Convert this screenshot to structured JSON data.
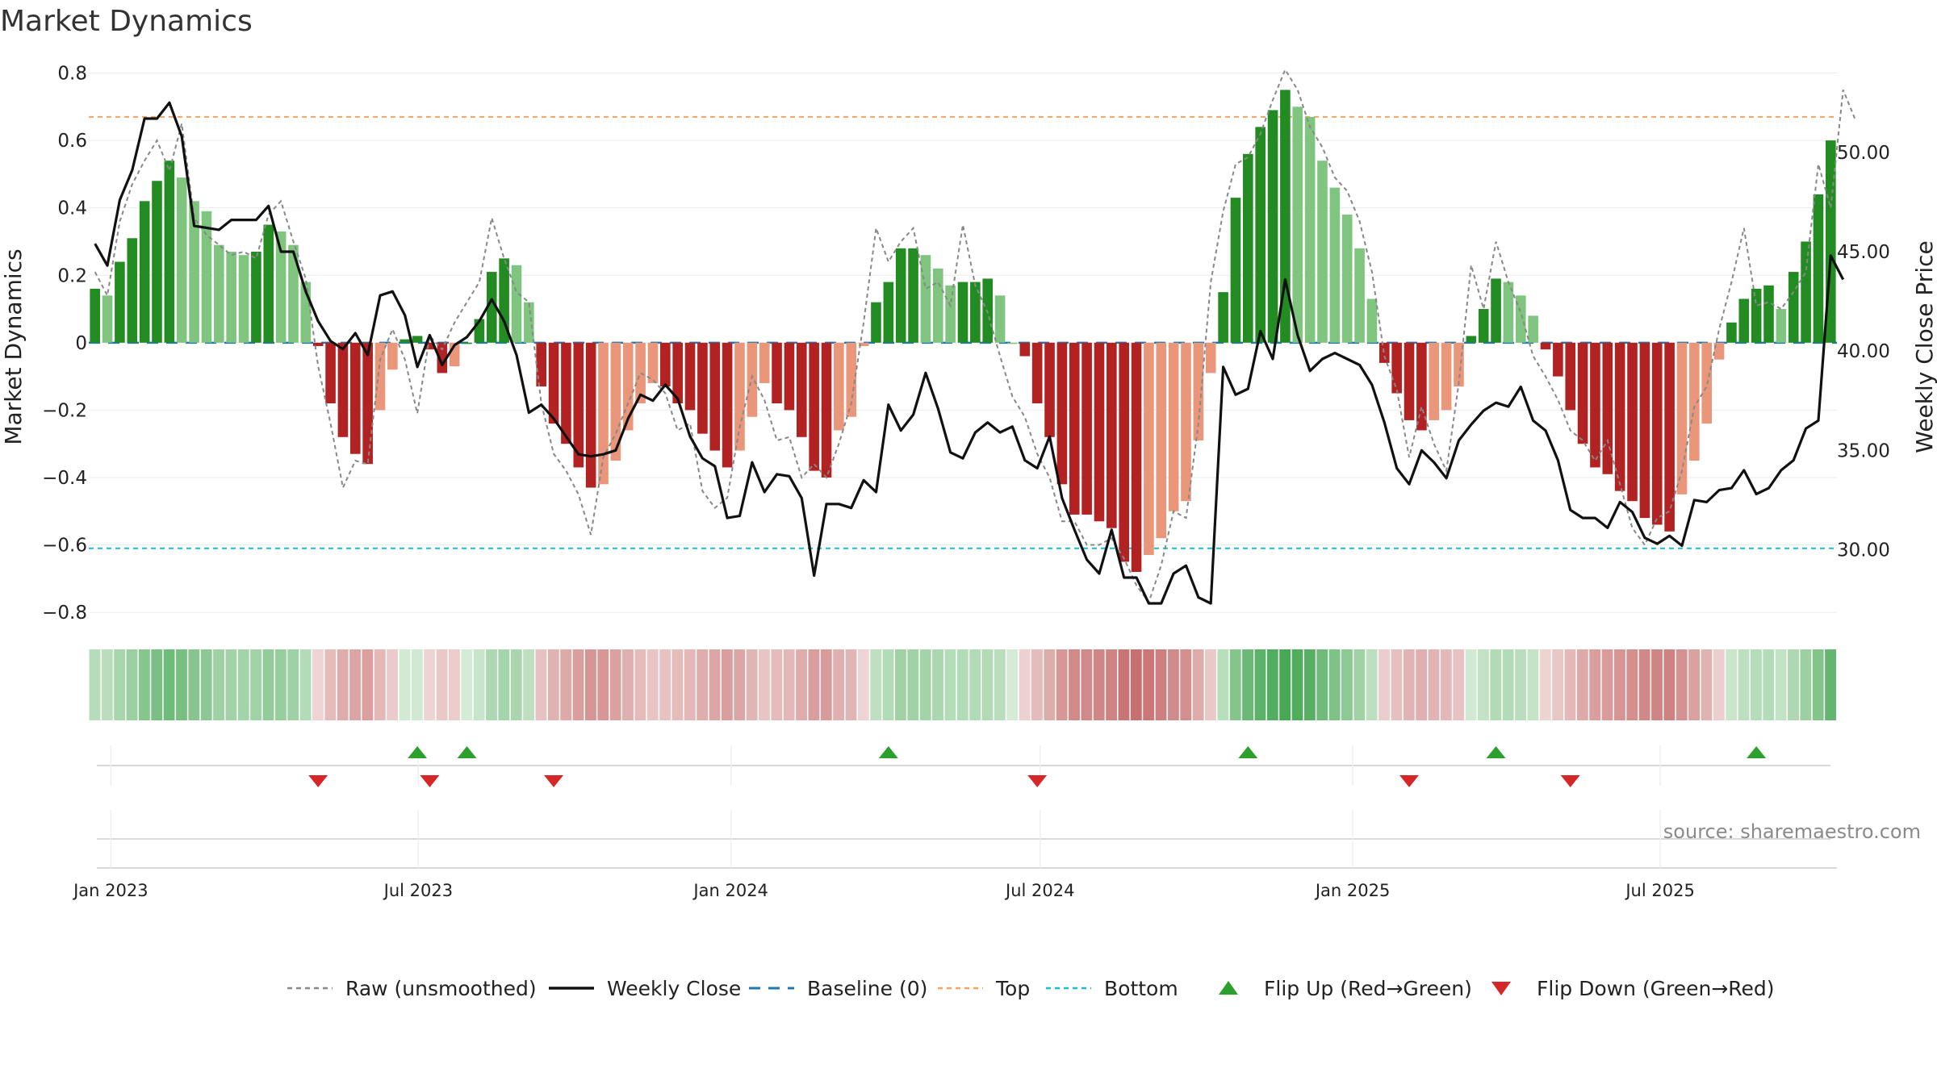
{
  "chart_data": {
    "type": "bar",
    "title": "Market Dynamics",
    "ylabel": "Market Dynamics",
    "y2label": "Weekly Close Price",
    "ylim": [
      -0.85,
      0.83
    ],
    "y2lim": [
      26.0,
      54.5
    ],
    "yticks": [
      0.8,
      0.6,
      0.4,
      0.2,
      0,
      -0.2,
      -0.4,
      -0.6,
      -0.8
    ],
    "ytick_labels": [
      "0.8",
      "0.6",
      "0.4",
      "0.2",
      "0",
      "−0.2",
      "−0.4",
      "−0.6",
      "−0.8"
    ],
    "y2ticks": [
      50,
      45,
      40,
      35,
      30
    ],
    "y2tick_labels": [
      "50.00",
      "45.00",
      "40.00",
      "35.00",
      "30.00"
    ],
    "x_start": "2022-12-19",
    "x_end": "2025-10-13",
    "xticks": [
      "2023-01-01",
      "2023-07-01",
      "2024-01-01",
      "2024-07-01",
      "2025-01-01",
      "2025-07-01"
    ],
    "xtick_labels": [
      "Jan 2023",
      "Jul 2023",
      "Jan 2024",
      "Jul 2024",
      "Jan 2025",
      "Jul 2025"
    ],
    "top_threshold": 0.67,
    "bottom_threshold": -0.61,
    "baseline": 0,
    "bar_colors": {
      "up_rising": "#228b22",
      "up_falling": "#7fc47f",
      "down_falling": "#b22222",
      "down_rising": "#e9967a"
    },
    "line_colors": {
      "raw": "#888888",
      "close": "#111111",
      "baseline": "#1f77b4",
      "top": "#f4a460",
      "bottom": "#17becf"
    },
    "dynamics": [
      0.16,
      0.14,
      0.24,
      0.31,
      0.42,
      0.48,
      0.54,
      0.49,
      0.42,
      0.39,
      0.29,
      0.27,
      0.26,
      0.27,
      0.35,
      0.33,
      0.29,
      0.18,
      -0.01,
      -0.18,
      -0.28,
      -0.33,
      -0.36,
      -0.2,
      -0.08,
      0.01,
      0.02,
      -0.02,
      -0.09,
      -0.07,
      0,
      0.07,
      0.21,
      0.25,
      0.23,
      0.12,
      -0.13,
      -0.24,
      -0.3,
      -0.37,
      -0.43,
      -0.42,
      -0.35,
      -0.26,
      -0.18,
      -0.12,
      -0.13,
      -0.18,
      -0.2,
      -0.27,
      -0.32,
      -0.37,
      -0.32,
      -0.22,
      -0.12,
      -0.18,
      -0.2,
      -0.28,
      -0.38,
      -0.4,
      -0.26,
      -0.22,
      -0.01,
      0.12,
      0.18,
      0.28,
      0.28,
      0.26,
      0.22,
      0.17,
      0.18,
      0.18,
      0.19,
      0.14,
      0,
      -0.04,
      -0.18,
      -0.28,
      -0.42,
      -0.51,
      -0.51,
      -0.53,
      -0.55,
      -0.65,
      -0.68,
      -0.63,
      -0.58,
      -0.5,
      -0.47,
      -0.29,
      -0.09,
      0.15,
      0.43,
      0.56,
      0.64,
      0.69,
      0.75,
      0.7,
      0.67,
      0.54,
      0.46,
      0.38,
      0.28,
      0.13,
      -0.06,
      -0.15,
      -0.23,
      -0.26,
      -0.23,
      -0.2,
      -0.13,
      0.02,
      0.1,
      0.19,
      0.18,
      0.14,
      0.08,
      -0.02,
      -0.1,
      -0.2,
      -0.3,
      -0.37,
      -0.39,
      -0.44,
      -0.47,
      -0.52,
      -0.54,
      -0.56,
      -0.45,
      -0.35,
      -0.24,
      -0.05,
      0.06,
      0.13,
      0.16,
      0.17,
      0.1,
      0.21,
      0.3,
      0.44,
      0.6
    ],
    "raw": [
      0.21,
      0.14,
      0.36,
      0.47,
      0.54,
      0.6,
      0.51,
      0.65,
      0.37,
      0.32,
      0.29,
      0.26,
      0.27,
      0.25,
      0.38,
      0.42,
      0.3,
      0.19,
      -0.07,
      -0.24,
      -0.43,
      -0.35,
      -0.36,
      -0.05,
      0.04,
      -0.05,
      -0.21,
      0.02,
      -0.02,
      0.06,
      0.12,
      0.18,
      0.37,
      0.25,
      0.15,
      0.12,
      -0.18,
      -0.33,
      -0.38,
      -0.45,
      -0.57,
      -0.34,
      -0.27,
      -0.18,
      -0.09,
      -0.11,
      -0.15,
      -0.26,
      -0.24,
      -0.44,
      -0.49,
      -0.46,
      -0.25,
      -0.1,
      -0.17,
      -0.29,
      -0.28,
      -0.4,
      -0.36,
      -0.4,
      -0.3,
      -0.18,
      0.06,
      0.34,
      0.24,
      0.3,
      0.34,
      0.16,
      0.18,
      0.11,
      0.35,
      0.17,
      0.09,
      -0.04,
      -0.16,
      -0.22,
      -0.33,
      -0.4,
      -0.53,
      -0.53,
      -0.6,
      -0.6,
      -0.58,
      -0.64,
      -0.72,
      -0.77,
      -0.66,
      -0.5,
      -0.52,
      -0.24,
      0.18,
      0.39,
      0.53,
      0.55,
      0.62,
      0.72,
      0.81,
      0.75,
      0.64,
      0.58,
      0.49,
      0.45,
      0.36,
      0.21,
      -0.04,
      -0.14,
      -0.34,
      -0.19,
      -0.3,
      -0.38,
      -0.12,
      0.23,
      0.1,
      0.3,
      0.18,
      0.09,
      -0.04,
      -0.1,
      -0.17,
      -0.26,
      -0.29,
      -0.35,
      -0.29,
      -0.42,
      -0.55,
      -0.6,
      -0.52,
      -0.5,
      -0.38,
      -0.19,
      -0.13,
      0.04,
      0.18,
      0.34,
      0.11,
      0.12,
      0.1,
      0.15,
      0.21,
      0.53,
      0.4,
      0.75,
      0.66
    ],
    "close": [
      45.4,
      44.3,
      47.6,
      49.1,
      51.7,
      51.7,
      52.5,
      50.8,
      46.3,
      46.2,
      46.1,
      46.6,
      46.6,
      46.6,
      47.3,
      45.0,
      45.0,
      43.0,
      41.5,
      40.5,
      40.1,
      40.9,
      39.8,
      42.8,
      43.0,
      41.8,
      39.2,
      40.8,
      39.3,
      40.3,
      40.7,
      41.5,
      42.6,
      41.5,
      39.8,
      36.9,
      37.3,
      36.6,
      35.7,
      34.8,
      34.7,
      34.8,
      35.0,
      36.6,
      37.8,
      37.5,
      38.3,
      37.6,
      35.7,
      34.6,
      34.2,
      31.6,
      31.7,
      34.4,
      32.9,
      33.8,
      33.7,
      32.6,
      28.7,
      32.3,
      32.3,
      32.1,
      33.5,
      32.9,
      37.3,
      36.0,
      36.8,
      38.9,
      37.1,
      34.9,
      34.6,
      35.9,
      36.4,
      35.9,
      36.2,
      34.5,
      34.1,
      35.7,
      32.6,
      31.0,
      29.5,
      28.8,
      31.0,
      28.6,
      28.6,
      27.3,
      27.3,
      28.8,
      29.2,
      27.6,
      27.3,
      39.2,
      37.8,
      38.1,
      41.0,
      39.6,
      43.6,
      40.8,
      39.0,
      39.6,
      39.9,
      39.6,
      39.3,
      38.3,
      36.4,
      34.1,
      33.3,
      35.0,
      34.4,
      33.6,
      35.5,
      36.3,
      37.0,
      37.4,
      37.2,
      38.2,
      36.5,
      36.0,
      34.5,
      32.0,
      31.6,
      31.6,
      31.1,
      32.4,
      31.9,
      30.6,
      30.3,
      30.7,
      30.2,
      32.5,
      32.4,
      33.0,
      33.1,
      34.0,
      32.8,
      33.1,
      34.0,
      34.5,
      36.1,
      36.5,
      44.8,
      43.6
    ]
  },
  "strip": {
    "colors": {
      "strong_green": "#48a856",
      "pale_green": "#d4ebd5",
      "strong_red": "#c46565",
      "pale_red": "#efd6d6"
    }
  },
  "signals": {
    "flip_up_weeks": [
      26,
      30,
      64,
      93,
      113,
      134
    ],
    "flip_down_weeks": [
      18,
      27,
      37,
      76,
      106,
      119
    ],
    "up_color": "#2ca02c",
    "down_color": "#d62728"
  },
  "source": "source: sharemaestro.com",
  "legend": [
    {
      "label": "Raw (unsmoothed)",
      "kind": "dash-line",
      "color": "#888888"
    },
    {
      "label": "Weekly Close",
      "kind": "solid-line",
      "color": "#111111"
    },
    {
      "label": "Baseline (0)",
      "kind": "dash-line",
      "color": "#1f77b4"
    },
    {
      "label": "Top",
      "kind": "dash-line",
      "color": "#f4a460"
    },
    {
      "label": "Bottom",
      "kind": "dash-line",
      "color": "#17becf"
    },
    {
      "label": "Flip Up (Red→Green)",
      "kind": "up-marker",
      "color": "#2ca02c"
    },
    {
      "label": "Flip Down (Green→Red)",
      "kind": "down-marker",
      "color": "#d62728"
    }
  ]
}
